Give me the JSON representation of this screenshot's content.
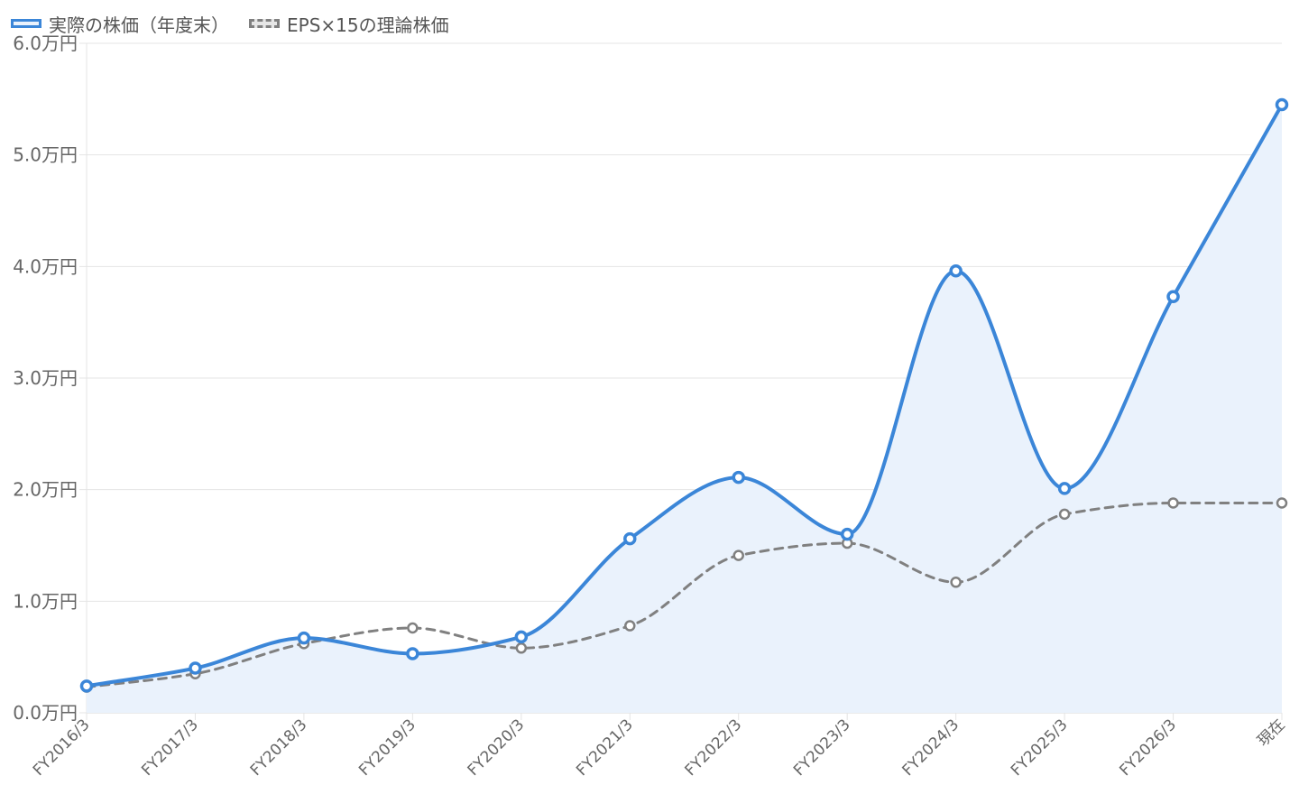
{
  "chart_data": {
    "type": "line",
    "categories": [
      "FY2016/3",
      "FY2017/3",
      "FY2018/3",
      "FY2019/3",
      "FY2020/3",
      "FY2021/3",
      "FY2022/3",
      "FY2023/3",
      "FY2024/3",
      "FY2025/3",
      "FY2026/3",
      "現在"
    ],
    "series": [
      {
        "name": "実際の株価（年度末）",
        "values": [
          0.24,
          0.4,
          0.67,
          0.53,
          0.68,
          1.56,
          2.11,
          1.6,
          3.96,
          2.01,
          3.73,
          5.45
        ],
        "color": "#3b86d8",
        "fill": "#eaf2fc",
        "style": "solid",
        "area": true
      },
      {
        "name": "EPS×15の理論株価",
        "values": [
          0.23,
          0.35,
          0.62,
          0.76,
          0.58,
          0.78,
          1.41,
          1.52,
          1.17,
          1.78,
          1.88,
          1.88
        ],
        "color": "#808080",
        "style": "dashed",
        "area": false
      }
    ],
    "y_ticks": [
      "0.0万円",
      "1.0万円",
      "2.0万円",
      "3.0万円",
      "4.0万円",
      "5.0万円",
      "6.0万円"
    ],
    "ylim": [
      0,
      6
    ],
    "grid": true,
    "legend_position": "top-left"
  }
}
